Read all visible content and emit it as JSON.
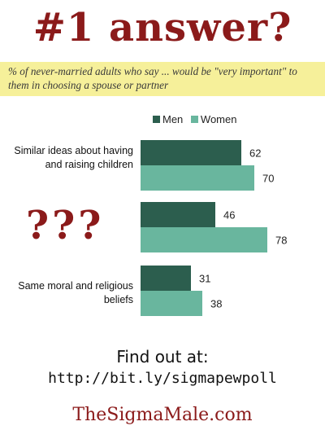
{
  "header": {
    "title": "#1 answer?",
    "subtitle": "% of never-married adults who say ... would be \"very important\" to them in choosing a spouse or partner"
  },
  "colors": {
    "accent": "#8b1a1a",
    "men": "#2c5e4e",
    "women": "#69b69e",
    "highlight": "#f6f09a"
  },
  "chart_data": {
    "type": "bar",
    "orientation": "horizontal",
    "categories": [
      "Similar ideas about having and raising children",
      "???",
      "Same moral and religious beliefs"
    ],
    "series": [
      {
        "name": "Men",
        "values": [
          62,
          46,
          31
        ]
      },
      {
        "name": "Women",
        "values": [
          70,
          78,
          38
        ]
      }
    ],
    "legend_position": "top",
    "grid": false,
    "xlim": [
      0,
      100
    ]
  },
  "labels": {
    "cat0": "Similar ideas about having and raising children",
    "cat1": "???",
    "cat2": "Same moral and religious beliefs"
  },
  "footer": {
    "find_out": "Find out at:",
    "link": "http://bit.ly/sigmapewpoll",
    "site": "TheSigmaMale.com"
  }
}
